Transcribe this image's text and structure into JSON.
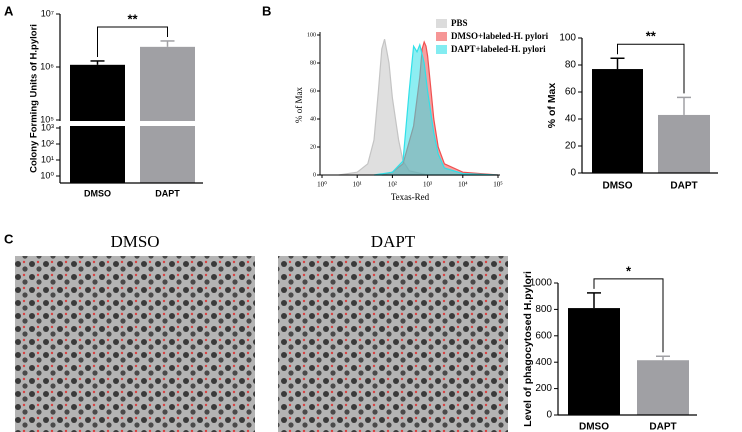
{
  "panels": [
    "A",
    "B",
    "C"
  ],
  "images": [
    {
      "title": "DMSO"
    },
    {
      "title": "DAPT"
    }
  ],
  "chart_data": [
    {
      "type": "bar",
      "ylabel": "Colony Forming Units of H.pylori",
      "categories": [
        "DMSO",
        "DAPT"
      ],
      "values": [
        1100000,
        2400000
      ],
      "errors": [
        200000,
        700000
      ],
      "colors": [
        "#000000",
        "#a0a0a4"
      ],
      "log": true,
      "ylim": [
        1,
        10000000
      ],
      "axis_break": [
        1000,
        100000
      ],
      "yticks": [
        {
          "value": 1,
          "label": "10⁰"
        },
        {
          "value": 10,
          "label": "10¹"
        },
        {
          "value": 100,
          "label": "10²"
        },
        {
          "value": 1000,
          "label": "10³"
        },
        {
          "value": 100000,
          "label": "10⁵"
        },
        {
          "value": 1000000,
          "label": "10⁶"
        },
        {
          "value": 10000000,
          "label": "10⁷"
        }
      ],
      "annotation": "**"
    },
    {
      "type": "area",
      "xlabel": "Texas-Red",
      "ylabel": "% of Max",
      "log_x": true,
      "xlim": [
        1,
        100000
      ],
      "ylim": [
        0,
        100
      ],
      "xticks": [
        {
          "value": 1,
          "label": "10⁰"
        },
        {
          "value": 10,
          "label": "10¹"
        },
        {
          "value": 100,
          "label": "10²"
        },
        {
          "value": 1000,
          "label": "10³"
        },
        {
          "value": 10000,
          "label": "10⁴"
        },
        {
          "value": 100000,
          "label": "10⁵"
        }
      ],
      "yticks": [
        0,
        20,
        40,
        60,
        80,
        100
      ],
      "series": [
        {
          "name": "PBS",
          "color": "#c4c4c4",
          "x": [
            3,
            10,
            20,
            30,
            40,
            50,
            60,
            80,
            100,
            150,
            200,
            300,
            1000
          ],
          "values": [
            0,
            2,
            8,
            25,
            60,
            90,
            97,
            80,
            55,
            25,
            10,
            3,
            0
          ]
        },
        {
          "name": "DMSO+labeled-H. pylori",
          "color": "#f05050",
          "x": [
            50,
            100,
            200,
            400,
            600,
            700,
            800,
            900,
            1000,
            1200,
            1500,
            2000,
            3000,
            10000,
            100000
          ],
          "values": [
            0,
            2,
            8,
            35,
            70,
            90,
            95,
            92,
            85,
            65,
            40,
            20,
            8,
            2,
            0
          ]
        },
        {
          "name": "DAPT+labeled-H. pylori",
          "color": "#30e0e8",
          "x": [
            30,
            100,
            200,
            300,
            400,
            500,
            600,
            800,
            1000,
            1500,
            2000,
            3000,
            10000,
            100000
          ],
          "values": [
            0,
            2,
            10,
            60,
            92,
            88,
            93,
            80,
            60,
            30,
            15,
            5,
            1,
            0
          ]
        }
      ]
    },
    {
      "type": "bar",
      "ylabel": "% of Max",
      "categories": [
        "DMSO",
        "DAPT"
      ],
      "values": [
        77,
        43
      ],
      "errors": [
        8,
        13
      ],
      "colors": [
        "#000000",
        "#a0a0a4"
      ],
      "ylim": [
        0,
        100
      ],
      "yticks": [
        0,
        20,
        40,
        60,
        80,
        100
      ],
      "annotation": "**"
    },
    {
      "type": "bar",
      "ylabel": "Level of phagocytosed H.pylori",
      "categories": [
        "DMSO",
        "DAPT"
      ],
      "values": [
        810,
        415
      ],
      "errors": [
        115,
        30
      ],
      "colors": [
        "#000000",
        "#a0a0a4"
      ],
      "ylim": [
        0,
        1000
      ],
      "yticks": [
        0,
        200,
        400,
        600,
        800,
        1000
      ],
      "annotation": "*"
    }
  ]
}
